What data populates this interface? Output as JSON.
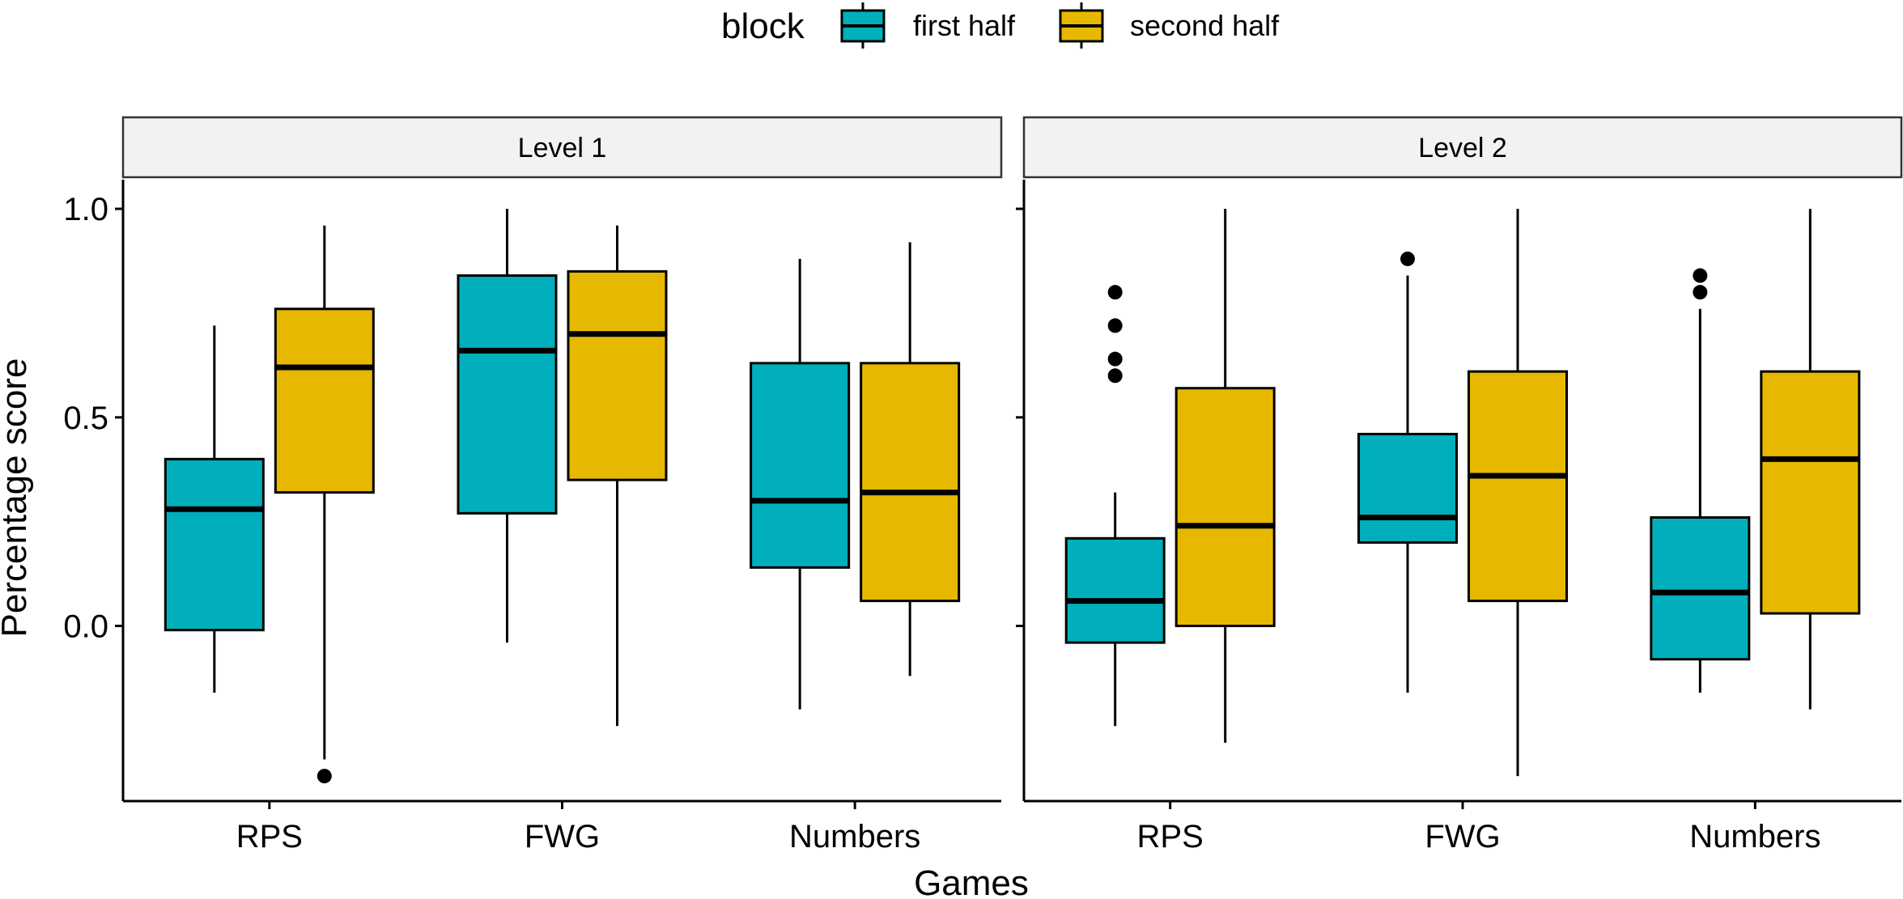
{
  "chart_data": {
    "type": "boxplot",
    "xlabel": "Games",
    "ylabel": "Percentage score",
    "ylim": [
      -0.42,
      1.07
    ],
    "yticks": [
      0.0,
      0.5,
      1.0
    ],
    "ytick_labels": [
      "0.0",
      "0.5",
      "1.0"
    ],
    "categories": [
      "RPS",
      "FWG",
      "Numbers"
    ],
    "grid": false,
    "legend": {
      "position": "top",
      "title": "block",
      "entries": [
        {
          "name": "first half",
          "color": "#00AFBB"
        },
        {
          "name": "second half",
          "color": "#E7B800"
        }
      ]
    },
    "facets": [
      {
        "label": "Level 1",
        "groups": [
          {
            "category": "RPS",
            "series": "first half",
            "lower": -0.16,
            "q1": -0.01,
            "median": 0.28,
            "q3": 0.4,
            "upper": 0.72,
            "outliers": []
          },
          {
            "category": "RPS",
            "series": "second half",
            "lower": -0.32,
            "q1": 0.32,
            "median": 0.62,
            "q3": 0.76,
            "upper": 0.96,
            "outliers": [
              -0.36
            ]
          },
          {
            "category": "FWG",
            "series": "first half",
            "lower": -0.04,
            "q1": 0.27,
            "median": 0.66,
            "q3": 0.84,
            "upper": 1.0,
            "outliers": []
          },
          {
            "category": "FWG",
            "series": "second half",
            "lower": -0.24,
            "q1": 0.35,
            "median": 0.7,
            "q3": 0.85,
            "upper": 0.96,
            "outliers": []
          },
          {
            "category": "Numbers",
            "series": "first half",
            "lower": -0.2,
            "q1": 0.14,
            "median": 0.3,
            "q3": 0.63,
            "upper": 0.88,
            "outliers": []
          },
          {
            "category": "Numbers",
            "series": "second half",
            "lower": -0.12,
            "q1": 0.06,
            "median": 0.32,
            "q3": 0.63,
            "upper": 0.92,
            "outliers": []
          }
        ]
      },
      {
        "label": "Level 2",
        "groups": [
          {
            "category": "RPS",
            "series": "first half",
            "lower": -0.24,
            "q1": -0.04,
            "median": 0.06,
            "q3": 0.21,
            "upper": 0.32,
            "outliers": [
              0.6,
              0.64,
              0.72,
              0.8
            ]
          },
          {
            "category": "RPS",
            "series": "second half",
            "lower": -0.28,
            "q1": 0.0,
            "median": 0.24,
            "q3": 0.57,
            "upper": 1.0,
            "outliers": []
          },
          {
            "category": "FWG",
            "series": "first half",
            "lower": -0.16,
            "q1": 0.2,
            "median": 0.26,
            "q3": 0.46,
            "upper": 0.84,
            "outliers": [
              0.88
            ]
          },
          {
            "category": "FWG",
            "series": "second half",
            "lower": -0.36,
            "q1": 0.06,
            "median": 0.36,
            "q3": 0.61,
            "upper": 1.0,
            "outliers": []
          },
          {
            "category": "Numbers",
            "series": "first half",
            "lower": -0.16,
            "q1": -0.08,
            "median": 0.08,
            "q3": 0.26,
            "upper": 0.76,
            "outliers": [
              0.8,
              0.84
            ]
          },
          {
            "category": "Numbers",
            "series": "second half",
            "lower": -0.2,
            "q1": 0.03,
            "median": 0.4,
            "q3": 0.61,
            "upper": 1.0,
            "outliers": []
          }
        ]
      }
    ]
  }
}
